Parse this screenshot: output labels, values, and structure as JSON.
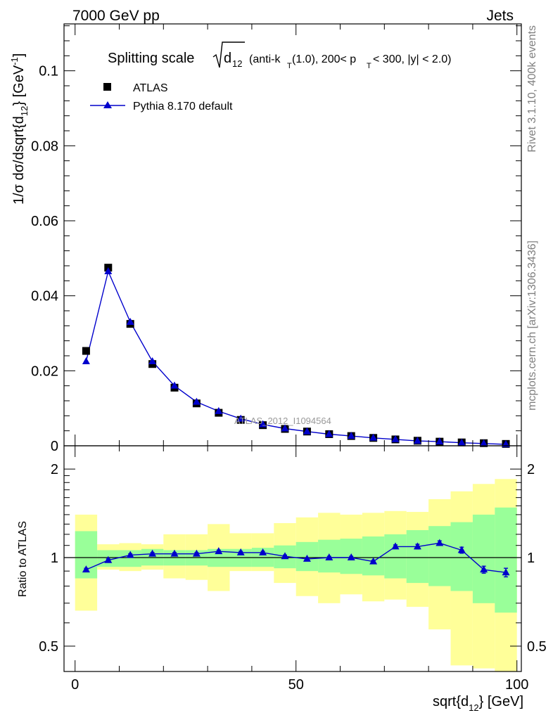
{
  "header": {
    "left": "7000 GeV pp",
    "right": "Jets"
  },
  "side_labels": {
    "rivet": "Rivet 3.1.10,  400k events",
    "mcplots": "mcplots.cern.ch [arXiv:1306.3436]"
  },
  "watermark": "ATLAS_2012_I1094564",
  "title": {
    "main": "Splitting scale",
    "var_base": "d",
    "var_sub": "12",
    "cut_pre": "(anti-k",
    "cut_sub1": "T",
    "cut_mid": "(1.0), 200< p",
    "cut_sub2": "T",
    "cut_post": " < 300, |y| < 2.0)"
  },
  "colors": {
    "mc": "#0000cc",
    "data": "#000000",
    "band_inner": "#99ff99",
    "band_outer": "#ffff99"
  },
  "chart_data": [
    {
      "type": "scatter",
      "name": "main",
      "ylabel": "1/σ dσ/dsqrt{d_12} [GeV^-1]",
      "ylim": [
        0,
        0.1125
      ],
      "xlim": [
        -2.5,
        101
      ],
      "y_ticks": [
        "0",
        "0.02",
        "0.04",
        "0.06",
        "0.08",
        "0.1"
      ],
      "y_tick_values": [
        0,
        0.02,
        0.04,
        0.06,
        0.08,
        0.1
      ],
      "x": [
        2.5,
        7.5,
        12.5,
        17.5,
        22.5,
        27.5,
        32.5,
        37.5,
        42.5,
        47.5,
        52.5,
        57.5,
        62.5,
        67.5,
        72.5,
        77.5,
        82.5,
        87.5,
        92.5,
        97.5
      ],
      "series": [
        {
          "name": "ATLAS",
          "marker": "square",
          "values": [
            0.0253,
            0.0475,
            0.0325,
            0.0218,
            0.0155,
            0.0113,
            0.0088,
            0.0069,
            0.0055,
            0.0045,
            0.0038,
            0.0031,
            0.0026,
            0.0021,
            0.0017,
            0.00135,
            0.0011,
            0.0009,
            0.0007,
            0.0005
          ]
        },
        {
          "name": "Pythia 8.170 default",
          "marker": "triangle",
          "values": [
            0.0225,
            0.0465,
            0.033,
            0.0225,
            0.016,
            0.0117,
            0.0092,
            0.0072,
            0.0057,
            0.0046,
            0.0038,
            0.0031,
            0.0026,
            0.0021,
            0.0017,
            0.0013,
            0.0011,
            0.0008,
            0.0006,
            0.0004
          ]
        }
      ],
      "legend": "top-left"
    },
    {
      "type": "scatter",
      "name": "ratio",
      "ylabel": "Ratio to ATLAS",
      "xlabel": "sqrt{d_12} [GeV]",
      "log_y": true,
      "ylim": [
        0.41,
        2.4
      ],
      "y_ticks": [
        "0.5",
        "1",
        "2"
      ],
      "y_tick_values": [
        0.5,
        1,
        2
      ],
      "x_ticks": [
        "0",
        "50",
        "100"
      ],
      "x_tick_values": [
        0,
        50,
        100
      ],
      "x_edges": [
        0,
        5,
        10,
        15,
        20,
        25,
        30,
        35,
        40,
        45,
        50,
        55,
        60,
        65,
        70,
        75,
        80,
        85,
        90,
        95,
        100
      ],
      "band_inner": {
        "low": [
          0.85,
          0.93,
          0.93,
          0.94,
          0.94,
          0.94,
          0.93,
          0.93,
          0.93,
          0.92,
          0.9,
          0.89,
          0.88,
          0.87,
          0.85,
          0.82,
          0.8,
          0.77,
          0.7,
          0.65
        ],
        "high": [
          1.23,
          1.06,
          1.06,
          1.07,
          1.06,
          1.06,
          1.07,
          1.07,
          1.08,
          1.1,
          1.13,
          1.15,
          1.16,
          1.18,
          1.2,
          1.24,
          1.28,
          1.32,
          1.4,
          1.48
        ]
      },
      "band_outer": {
        "low": [
          0.66,
          0.91,
          0.9,
          0.91,
          0.85,
          0.84,
          0.77,
          0.9,
          0.9,
          0.82,
          0.74,
          0.7,
          0.75,
          0.71,
          0.72,
          0.68,
          0.57,
          0.43,
          0.42,
          0.38
        ],
        "high": [
          1.4,
          1.11,
          1.12,
          1.11,
          1.2,
          1.2,
          1.3,
          1.21,
          1.21,
          1.31,
          1.37,
          1.42,
          1.4,
          1.42,
          1.44,
          1.43,
          1.58,
          1.68,
          1.78,
          1.85
        ]
      },
      "x": [
        2.5,
        7.5,
        12.5,
        17.5,
        22.5,
        27.5,
        32.5,
        37.5,
        42.5,
        47.5,
        52.5,
        57.5,
        62.5,
        67.5,
        72.5,
        77.5,
        82.5,
        87.5,
        92.5,
        97.5
      ],
      "series": [
        {
          "name": "Pythia 8.170 default",
          "values": [
            0.91,
            0.98,
            1.02,
            1.03,
            1.03,
            1.03,
            1.05,
            1.04,
            1.04,
            1.01,
            0.99,
            1.0,
            1.0,
            0.97,
            1.09,
            1.09,
            1.12,
            1.06,
            0.91,
            0.89
          ],
          "err": [
            0.01,
            0.01,
            0.01,
            0.01,
            0.01,
            0.01,
            0.01,
            0.01,
            0.01,
            0.01,
            0.01,
            0.01,
            0.01,
            0.01,
            0.015,
            0.02,
            0.02,
            0.025,
            0.025,
            0.03
          ]
        }
      ]
    }
  ]
}
